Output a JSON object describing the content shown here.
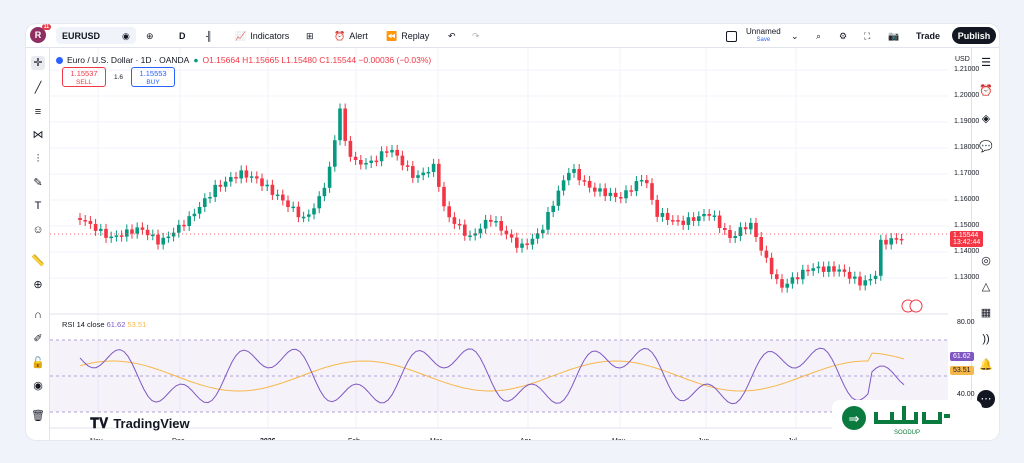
{
  "topbar": {
    "avatar_letter": "R",
    "avatar_badge": "11",
    "symbol": "EURUSD",
    "interval": "D",
    "indicators_label": "Indicators",
    "alert_label": "Alert",
    "replay_label": "Replay",
    "layout_name": "Unnamed",
    "layout_status": "Save",
    "trade_label": "Trade",
    "publish_label": "Publish"
  },
  "legend": {
    "title": "Euro / U.S. Dollar · 1D · OANDA",
    "ohlc": "O1.15664 H1.15665 L1.15480 C1.15544 −0.00036 (−0.03%)"
  },
  "sell": {
    "price": "1.15537",
    "label": "SELL"
  },
  "spread": "1.6",
  "buy": {
    "price": "1.15553",
    "label": "BUY"
  },
  "currency": "USD",
  "price_axis": [
    "1.21000",
    "1.20000",
    "1.19000",
    "1.18000",
    "1.17000",
    "1.16000",
    "1.15000",
    "1.14000",
    "1.13000"
  ],
  "last_price": {
    "value": "1.15544",
    "countdown": "13:42:44"
  },
  "rsi": {
    "label": "RSI 14 close",
    "value": "61.62",
    "ma": "53.51",
    "axis_top": "80.00",
    "axis_mid": "40.00"
  },
  "time_axis": [
    "Nov",
    "Dec",
    "2026",
    "Feb",
    "Mar",
    "Apr",
    "May",
    "Jun",
    "Jul"
  ],
  "watermark": "TradingView",
  "brand": "SOODUP",
  "colors": {
    "up": "#089981",
    "down": "#f23645",
    "rsi": "#7e57c2",
    "rsi_ma": "#f7b84b"
  }
}
